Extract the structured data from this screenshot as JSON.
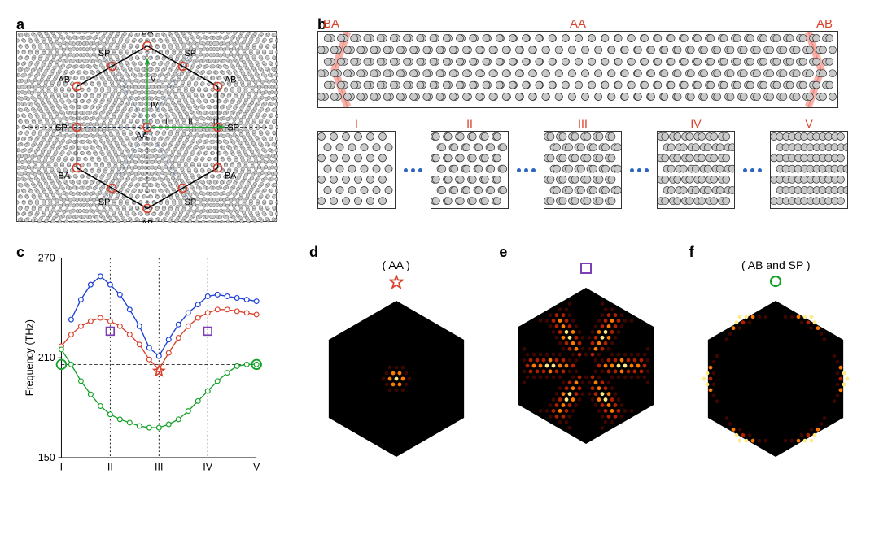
{
  "labels": {
    "a": "a",
    "b": "b",
    "c": "c",
    "d": "d",
    "e": "e",
    "f": "f"
  },
  "panel_a": {
    "stacking_labels": [
      "AB",
      "SP",
      "BA",
      "SP",
      "AB",
      "SP",
      "BA",
      "SP",
      "AB",
      "SP",
      "BA",
      "SP",
      "AA"
    ],
    "roman_labels": [
      "I",
      "II",
      "III",
      "IV",
      "V"
    ],
    "vertex_color": "#d9412b",
    "hex_stroke": "#000000",
    "guide_stroke": "#5b7ca8",
    "arrow_color": "#16a22a",
    "nanohole": {
      "r": 2.2,
      "fill": "#c9c9c9",
      "stroke": "#3a3a3a"
    }
  },
  "panel_b": {
    "top_labels": {
      "BA": "BA",
      "AA": "AA",
      "AB": "AB"
    },
    "wall_color": "#f7b1aa",
    "wall_stroke": "#ea7d72",
    "cells": [
      "I",
      "II",
      "III",
      "IV",
      "V"
    ],
    "dot_color": "#2c65c4",
    "nanohole": {
      "r": 4.5,
      "fill": "#c9c9c9",
      "stroke": "#2b2b2b"
    }
  },
  "panel_c": {
    "ylabel": "Frequency (THz)",
    "ylim": [
      150,
      270
    ],
    "yticks": [
      150,
      210,
      270
    ],
    "xticks": [
      "I",
      "II",
      "III",
      "IV",
      "V"
    ],
    "dashed_y": 206,
    "series": {
      "blue": {
        "color": "#1b3fd6",
        "values": [
          null,
          233,
          245,
          254,
          259,
          254,
          248,
          239,
          229,
          216,
          211,
          221,
          230,
          237,
          242,
          247,
          248,
          247,
          246,
          245,
          244
        ]
      },
      "red": {
        "color": "#d9412b",
        "values": [
          217,
          224,
          229,
          232,
          234,
          232,
          229,
          224,
          218,
          209,
          203,
          213,
          222,
          229,
          234,
          237,
          239,
          239,
          238,
          237,
          236
        ]
      },
      "green": {
        "color": "#16a22a",
        "values": [
          215,
          206,
          196,
          188,
          181,
          176,
          173,
          171,
          169,
          168,
          168,
          170,
          173,
          178,
          184,
          190,
          196,
          201,
          205,
          206,
          206
        ]
      }
    },
    "markers": {
      "star": {
        "x": 10,
        "y": 202,
        "color": "#d9412b"
      },
      "square_left": {
        "x": 5,
        "y": 226,
        "color": "#7c3fb5"
      },
      "square_right": {
        "x": 15,
        "y": 226,
        "color": "#7c3fb5"
      },
      "circle_left": {
        "x": 0,
        "y": 206,
        "color": "#16a22a"
      },
      "circle_right": {
        "x": 20,
        "y": 206,
        "color": "#16a22a"
      }
    },
    "axis_color": "#000000",
    "grid_color": "#000000",
    "font_size": 13
  },
  "hex_panels": {
    "d": {
      "caption": "( AA )",
      "marker": "star",
      "marker_color": "#d9412b",
      "mode": "center"
    },
    "e": {
      "caption": "",
      "marker": "square",
      "marker_color": "#7c3fb5",
      "mode": "snowflake"
    },
    "f": {
      "caption": "( AB and SP )",
      "marker": "circle",
      "marker_color": "#16a22a",
      "mode": "edge"
    }
  },
  "hex_colors": {
    "bg": "#000000",
    "hot1": "#ffeb8a",
    "hot2": "#ff7a00",
    "hot3": "#b21f00",
    "hot4": "#3b0600"
  }
}
